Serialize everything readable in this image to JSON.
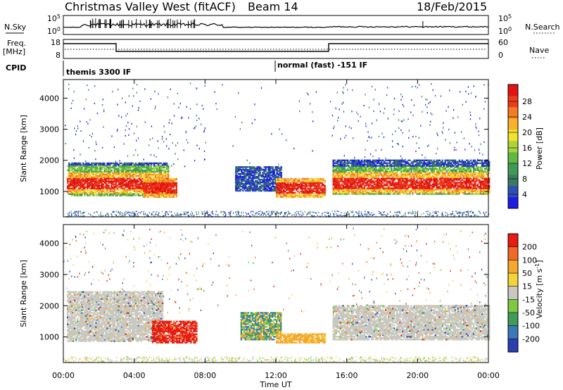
{
  "header": {
    "station": "Christmas Valley West (fitACF)",
    "beam": "Beam 14",
    "date": "18/Feb/2015"
  },
  "nsky_panel": {
    "left_label": "N.Sky",
    "left_ticks": [
      "10^5",
      "10^0"
    ],
    "right_ticks": [
      "10^5",
      "10^0"
    ],
    "right_label": "N.Search"
  },
  "freq_panel": {
    "left_label_top": "Freq.",
    "left_label_bottom": "[MHz]",
    "left_ticks": [
      "18",
      "8"
    ],
    "right_ticks": [
      "60",
      "0"
    ],
    "right_label": "Nave"
  },
  "cpid_panel": {
    "label": "CPID",
    "segments": [
      "themis 3300 IF",
      "normal (fast) -151 IF"
    ]
  },
  "time_axis": {
    "ticks": [
      "00:00",
      "04:00",
      "08:00",
      "12:00",
      "16:00",
      "20:00",
      "00:00"
    ],
    "label": "Time UT"
  },
  "chart_data": [
    {
      "type": "heatmap",
      "name": "power",
      "ylabel": "Slant Range [km]",
      "y_ticks": [
        "1000",
        "2000",
        "3000",
        "4000"
      ],
      "ylim": [
        180,
        4600
      ],
      "xlim": [
        0,
        24
      ],
      "colorbar": {
        "label": "Power [dB]",
        "ticks": [
          "4",
          "8",
          "12",
          "16",
          "20",
          "24",
          "28"
        ],
        "colors": [
          "#1c1ce6",
          "#2f4fb8",
          "#3a7a5e",
          "#3f9a56",
          "#5fb844",
          "#a8d53a",
          "#f3e12c",
          "#f7b22a",
          "#f47b24",
          "#ee3b1c",
          "#e01414"
        ]
      },
      "regions": [
        {
          "t0": 0.2,
          "t1": 5.9,
          "r0": 850,
          "r1": 1900,
          "level": "high"
        },
        {
          "t0": 4.5,
          "t1": 6.4,
          "r0": 800,
          "r1": 1400,
          "level": "mid"
        },
        {
          "t0": 9.7,
          "t1": 12.3,
          "r0": 1000,
          "r1": 1800,
          "level": "low"
        },
        {
          "t0": 12.0,
          "t1": 14.8,
          "r0": 800,
          "r1": 1400,
          "level": "mid"
        },
        {
          "t0": 15.2,
          "t1": 24.0,
          "r0": 900,
          "r1": 2000,
          "level": "high"
        }
      ]
    },
    {
      "type": "heatmap",
      "name": "velocity",
      "ylabel": "Slant Range [km]",
      "y_ticks": [
        "1000",
        "2000",
        "3000",
        "4000"
      ],
      "ylim": [
        180,
        4600
      ],
      "xlim": [
        0,
        24
      ],
      "colorbar": {
        "label": "Velocity [m s^-1]",
        "ticks": [
          "200",
          "100",
          "50",
          "15",
          "-15",
          "-50",
          "-100",
          "-200"
        ],
        "colors": [
          "#2a3fb0",
          "#3a78b8",
          "#3e9b5a",
          "#7ec843",
          "#c8c8c0",
          "#f3d33a",
          "#f5a82e",
          "#f06a26",
          "#e61c14"
        ]
      },
      "regions": [
        {
          "t0": 0.2,
          "t1": 5.6,
          "r0": 850,
          "r1": 2450,
          "level": "grey"
        },
        {
          "t0": 5.0,
          "t1": 7.5,
          "r0": 800,
          "r1": 1500,
          "level": "red"
        },
        {
          "t0": 10.0,
          "t1": 12.3,
          "r0": 900,
          "r1": 1800,
          "level": "mixed"
        },
        {
          "t0": 12.0,
          "t1": 14.8,
          "r0": 800,
          "r1": 1100,
          "level": "orange"
        },
        {
          "t0": 15.2,
          "t1": 24.0,
          "r0": 900,
          "r1": 2000,
          "level": "grey"
        }
      ]
    }
  ]
}
